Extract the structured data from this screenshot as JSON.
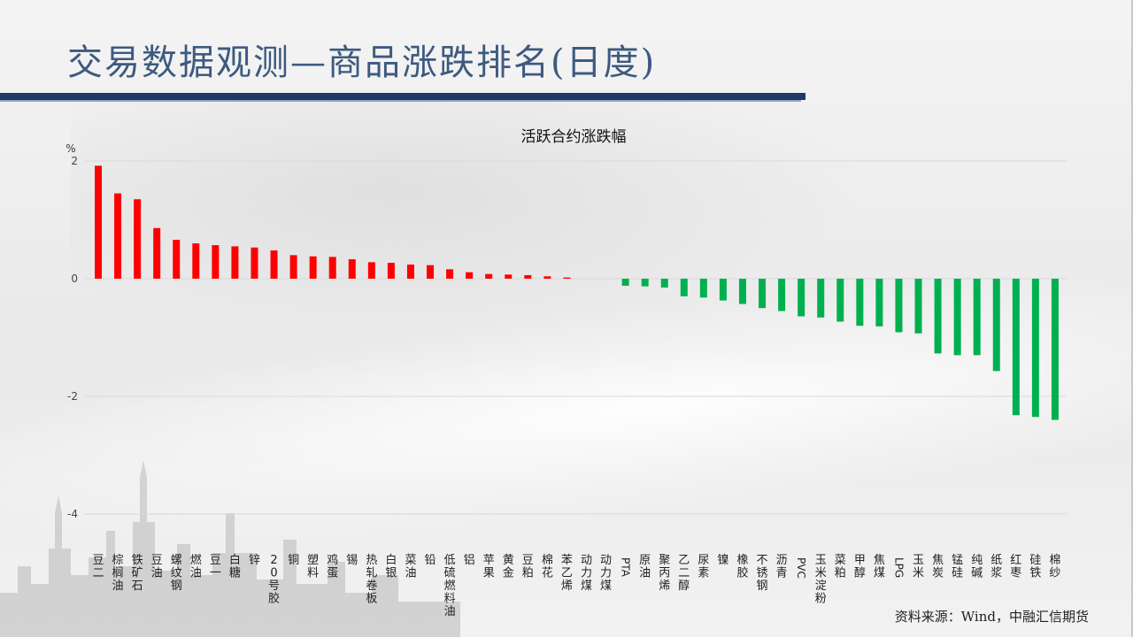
{
  "slide": {
    "title": "交易数据观测—商品涨跌排名(日度)",
    "source": "资料来源：Wind，中融汇信期货"
  },
  "colors": {
    "up": "#ff0000",
    "down": "#00b050",
    "title": "#3d5a80",
    "title_bar": "#1f3864"
  },
  "chart_data": {
    "type": "bar",
    "title": "活跃合约涨跌幅",
    "ylabel": "%",
    "xlabel": "",
    "ylim": [
      -4,
      2
    ],
    "yticks": [
      2,
      0,
      -2,
      -4
    ],
    "grid": true,
    "legend": "none",
    "categories": [
      "豆二",
      "棕榈油",
      "铁矿石",
      "豆油",
      "螺纹钢",
      "燃油",
      "豆一",
      "白糖",
      "锌",
      "20号胶",
      "铜",
      "塑料",
      "鸡蛋",
      "锡",
      "热轧卷板",
      "白银",
      "菜油",
      "铅",
      "低硫燃料油",
      "铝",
      "苹果",
      "黄金",
      "豆粕",
      "棉花",
      "苯乙烯",
      "动力煤",
      "动力煤",
      "PTA",
      "原油",
      "聚丙烯",
      "乙二醇",
      "尿素",
      "镍",
      "橡胶",
      "不锈钢",
      "沥青",
      "PVC",
      "玉米淀粉",
      "菜粕",
      "甲醇",
      "焦煤",
      "LPG",
      "玉米",
      "焦炭",
      "锰硅",
      "纯碱",
      "纸浆",
      "红枣",
      "硅铁",
      "棉纱"
    ],
    "values": [
      1.92,
      1.45,
      1.35,
      0.86,
      0.66,
      0.6,
      0.57,
      0.55,
      0.53,
      0.48,
      0.4,
      0.38,
      0.37,
      0.33,
      0.28,
      0.27,
      0.24,
      0.23,
      0.16,
      0.11,
      0.08,
      0.07,
      0.06,
      0.04,
      0.02,
      0.0,
      0.0,
      -0.12,
      -0.13,
      -0.15,
      -0.3,
      -0.32,
      -0.37,
      -0.43,
      -0.5,
      -0.55,
      -0.64,
      -0.66,
      -0.73,
      -0.8,
      -0.81,
      -0.91,
      -0.93,
      -1.27,
      -1.3,
      -1.3,
      -1.57,
      -2.32,
      -2.35,
      -2.4
    ]
  }
}
